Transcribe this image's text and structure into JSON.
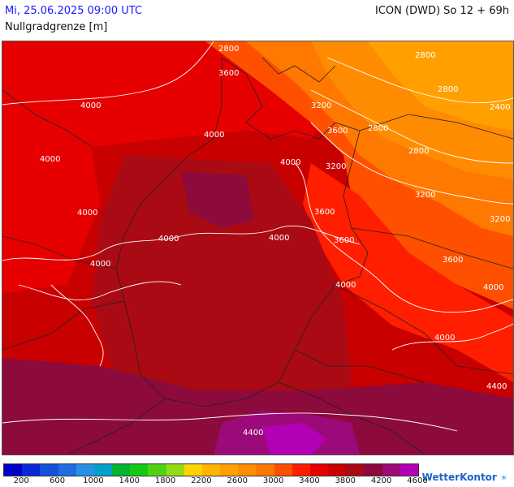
{
  "header": {
    "date": "Mi, 25.06.2025 09:00 UTC",
    "model": "ICON (DWD) So 12 + 69h",
    "parameter": "Nullgradgrenze [m]"
  },
  "contour_labels": [
    "2800",
    "2800",
    "2800",
    "3600",
    "3200",
    "2800",
    "2400",
    "4000",
    "4000",
    "3600",
    "2800",
    "4000",
    "3200",
    "3200",
    "4000",
    "4000",
    "3600",
    "3200",
    "4000",
    "3600",
    "4000",
    "4000",
    "3600",
    "4000",
    "4000",
    "4000",
    "4400",
    "4400"
  ],
  "legend": {
    "colors": [
      "#0000c8",
      "#0a28d8",
      "#1450dc",
      "#1e6ee0",
      "#2891e6",
      "#00a0c8",
      "#00b432",
      "#14c814",
      "#50d214",
      "#96dc14",
      "#ffd200",
      "#ffb400",
      "#ffa000",
      "#ff8c00",
      "#ff7800",
      "#ff5000",
      "#ff1e00",
      "#e60000",
      "#c80000",
      "#aa0a14",
      "#8c0a3c",
      "#9b0a78",
      "#b400b4"
    ],
    "labels": [
      "200",
      "600",
      "1000",
      "1400",
      "1800",
      "2200",
      "2600",
      "3000",
      "3400",
      "3800",
      "4200",
      "4600"
    ]
  },
  "brand": {
    "name": "WetterKontor",
    "mark": "☀"
  }
}
